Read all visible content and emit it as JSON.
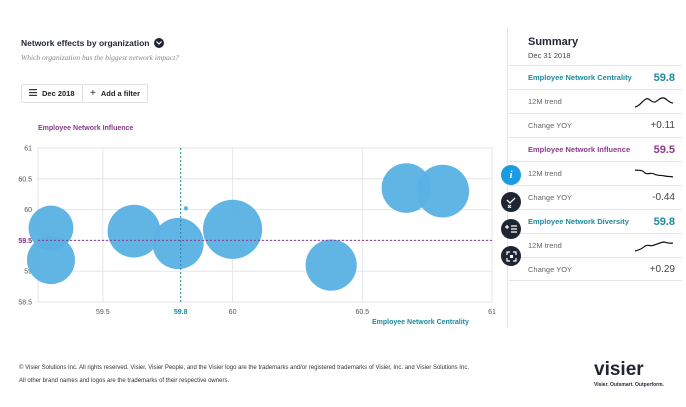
{
  "header": {
    "title": "Network effects by organization",
    "subtitle": "Which organization has the biggest network impact?"
  },
  "filters": {
    "date_label": "Dec 2018",
    "add_filter_label": "Add a filter"
  },
  "chart_data": {
    "type": "scatter",
    "xlabel": "Employee Network Centrality",
    "ylabel": "Employee Network Influence",
    "xlim": [
      59.25,
      61
    ],
    "ylim": [
      58.5,
      61
    ],
    "x_ticks": [
      "59.5",
      "59.8",
      "60",
      "60.5",
      "61"
    ],
    "y_ticks": [
      "61",
      "60.5",
      "60",
      "59.5",
      "59",
      "58.5"
    ],
    "reference_x": 59.8,
    "reference_y": 59.5,
    "reference_x_label": "59.8",
    "reference_y_label": "59.5",
    "bubble_color": "#58b1e4",
    "points": [
      {
        "x": 59.3,
        "y": 59.7,
        "size": 0.9
      },
      {
        "x": 59.3,
        "y": 59.18,
        "size": 1.0
      },
      {
        "x": 59.62,
        "y": 59.65,
        "size": 1.15
      },
      {
        "x": 59.79,
        "y": 59.45,
        "size": 1.1
      },
      {
        "x": 60.0,
        "y": 59.68,
        "size": 1.35
      },
      {
        "x": 60.38,
        "y": 59.1,
        "size": 1.1
      },
      {
        "x": 60.67,
        "y": 60.35,
        "size": 1.05
      },
      {
        "x": 60.81,
        "y": 60.3,
        "size": 1.15
      },
      {
        "x": 59.82,
        "y": 60.02,
        "size": 0.12
      }
    ]
  },
  "summary": {
    "title": "Summary",
    "date": "Dec 31 2018",
    "metrics": [
      {
        "name": "Employee Network Centrality",
        "value": "59.8",
        "color": "#1b8a9e",
        "trend_label": "12M trend",
        "change_label": "Change YOY",
        "change": "+0.11"
      },
      {
        "name": "Employee Network Influence",
        "value": "59.5",
        "color": "#8a3a8c",
        "trend_label": "12M trend",
        "change_label": "Change YOY",
        "change": "-0.44"
      },
      {
        "name": "Employee Network Diversity",
        "value": "59.8",
        "color": "#1b8a9e",
        "trend_label": "12M trend",
        "change_label": "Change YOY",
        "change": "+0.29"
      }
    ]
  },
  "side_icons": [
    {
      "name": "info-icon",
      "glyph": "i",
      "color": "#1b9be0"
    },
    {
      "name": "compare-icon",
      "glyph": "",
      "color": "#1f2533"
    },
    {
      "name": "add-remove-icon",
      "glyph": "",
      "color": "#1f2533"
    },
    {
      "name": "expand-icon",
      "glyph": "",
      "color": "#1f2533"
    }
  ],
  "footer": {
    "line1": "© Visier Solutions Inc. All rights reserved. Visier, Visier People, and the Visier logo are the trademarks and/or registered trademarks of Visier, Inc. and Visier Solutions Inc.",
    "line2": "All other brand names and logos are the trademarks of their respective owners.",
    "logo_word": "visier",
    "logo_tagline": "Visier. Outsmart. Outperform."
  }
}
